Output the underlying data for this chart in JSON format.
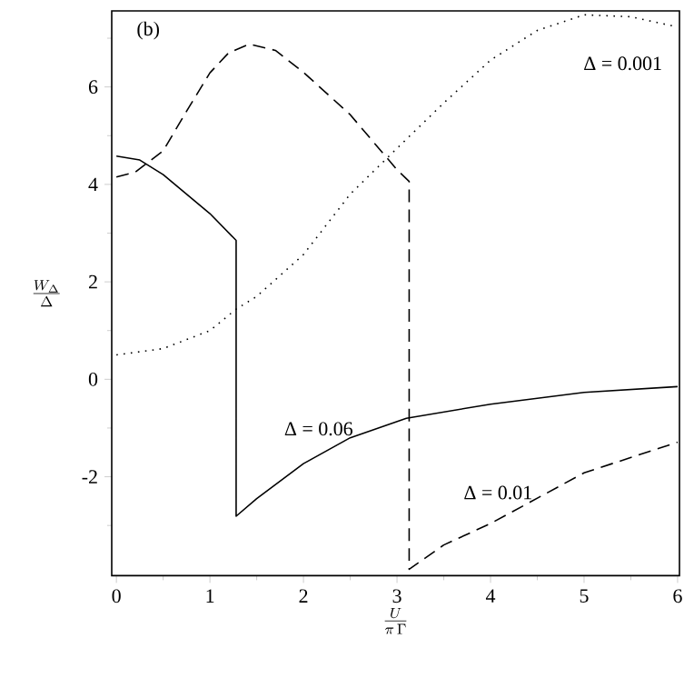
{
  "chart_data": {
    "type": "line",
    "xlabel": "\\frac{U}{\\pi\\,\\Gamma}",
    "ylabel": "\\frac{W_{\\Delta}}{\\Delta}",
    "xlim": [
      -0.05,
      6.02
    ],
    "ylim": [
      -4.03,
      7.56
    ],
    "xticks": [
      0,
      {
        "value": 0.5,
        "label": null
      },
      1,
      {
        "value": 1.5,
        "label": null
      },
      2,
      {
        "value": 2.5,
        "label": null
      },
      3,
      {
        "value": 3.5,
        "label": null
      },
      4,
      {
        "value": 4.5,
        "label": null
      },
      5,
      {
        "value": 5.5,
        "label": null
      },
      6
    ],
    "yticks": [
      {
        "value": -3,
        "label": null
      },
      -2,
      {
        "value": -1,
        "label": null
      },
      0,
      {
        "value": 1,
        "label": null
      },
      2,
      {
        "value": 3,
        "label": null
      },
      4,
      {
        "value": 5,
        "label": null
      },
      6,
      {
        "value": 7,
        "label": null
      }
    ],
    "grid": false,
    "marker": "none",
    "annotations": [
      "(b)",
      "Δ = 0.001",
      "Δ = 0.06",
      "Δ = 0.01"
    ],
    "series": [
      {
        "color": "#000000",
        "line_style": "solid",
        "x": [
          0,
          0.25,
          0.5,
          0.75,
          1.0,
          1.28,
          1.28,
          1.5,
          2,
          2.5,
          3.1,
          4,
          5,
          6
        ],
        "values": [
          4.58,
          4.5,
          4.2,
          3.8,
          3.4,
          2.85,
          -2.81,
          -2.45,
          -1.73,
          -1.2,
          -0.8,
          -0.51,
          -0.27,
          -0.15
        ]
      },
      {
        "color": "#000000",
        "line_style": "dashed",
        "x": [
          0,
          0.2,
          0.5,
          0.75,
          1.0,
          1.2,
          1.42,
          1.7,
          2,
          2.5,
          3,
          3.13,
          3.13,
          3.5,
          4,
          5,
          6
        ],
        "values": [
          4.15,
          4.25,
          4.69,
          5.5,
          6.29,
          6.7,
          6.88,
          6.75,
          6.3,
          5.43,
          4.3,
          4.06,
          -3.9,
          -3.4,
          -2.96,
          -1.92,
          -1.29
        ]
      },
      {
        "color": "#000000",
        "line_style": "dotted",
        "x": [
          0,
          0.5,
          1,
          1.28,
          1.5,
          2,
          2.5,
          3,
          3.5,
          4,
          4.5,
          5,
          5.5,
          6
        ],
        "values": [
          0.5,
          0.63,
          1.0,
          1.44,
          1.7,
          2.56,
          3.8,
          4.74,
          5.67,
          6.55,
          7.16,
          7.48,
          7.44,
          7.23
        ]
      }
    ]
  }
}
